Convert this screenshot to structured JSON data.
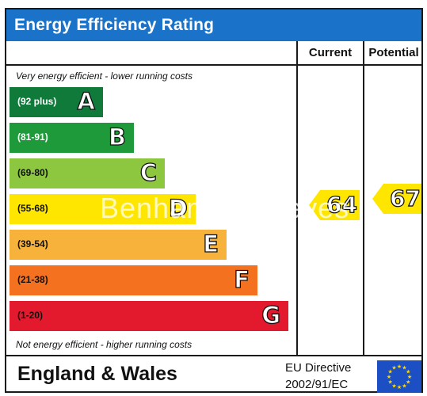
{
  "title": "Energy Efficiency Rating",
  "columns": {
    "current": "Current",
    "potential": "Potential"
  },
  "captions": {
    "top": "Very energy efficient - lower running costs",
    "bottom": "Not energy efficient - higher running costs"
  },
  "bands": [
    {
      "range": "(92 plus)",
      "letter": "A",
      "color": "#0f7a3a",
      "range_color": "#ffffff"
    },
    {
      "range": "(81-91)",
      "letter": "B",
      "color": "#1f9a3a",
      "range_color": "#ffffff"
    },
    {
      "range": "(69-80)",
      "letter": "C",
      "color": "#8dc63f",
      "range_color": "#111111"
    },
    {
      "range": "(55-68)",
      "letter": "D",
      "color": "#ffe600",
      "range_color": "#111111"
    },
    {
      "range": "(39-54)",
      "letter": "E",
      "color": "#f7b23b",
      "range_color": "#111111"
    },
    {
      "range": "(21-38)",
      "letter": "F",
      "color": "#f3711f",
      "range_color": "#111111"
    },
    {
      "range": "(1-20)",
      "letter": "G",
      "color": "#e3192d",
      "range_color": "#111111"
    }
  ],
  "ratings": {
    "current": {
      "value": "64",
      "band": "D",
      "color": "#ffe600"
    },
    "potential": {
      "value": "67",
      "band": "D",
      "color": "#ffe600"
    }
  },
  "watermark": "Benham & Reeves",
  "footer": {
    "region": "England & Wales",
    "directive_line1": "EU Directive",
    "directive_line2": "2002/91/EC"
  },
  "icons": {
    "flag": "eu-flag-icon"
  },
  "colors": {
    "header": "#1a73c9",
    "flag": "#1d4fc4",
    "stars": "#ffd800"
  }
}
